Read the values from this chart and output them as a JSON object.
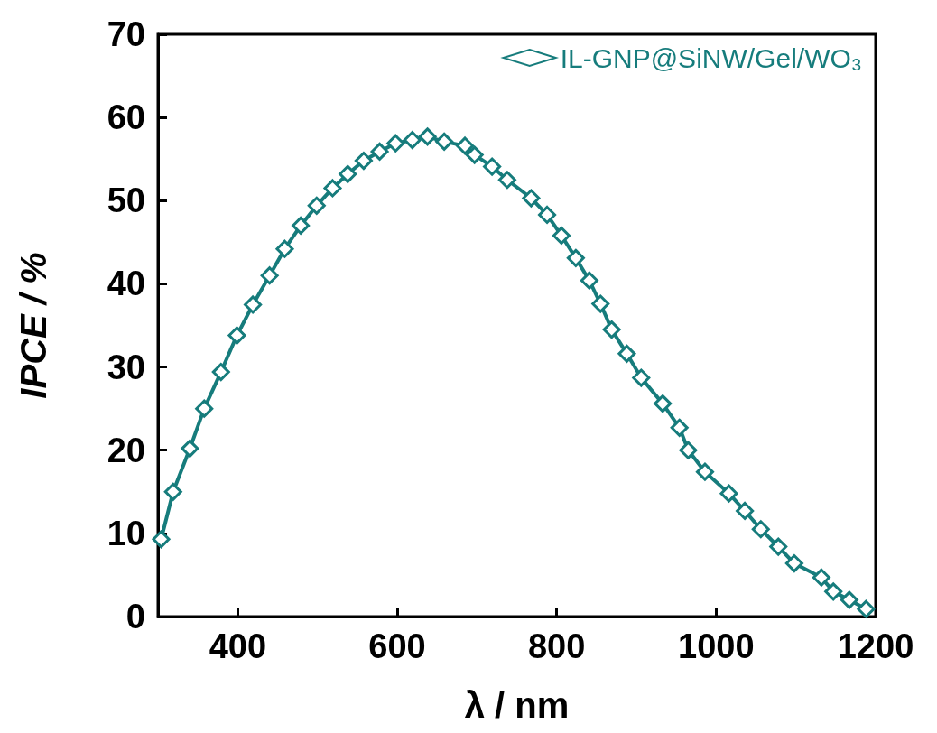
{
  "chart_data": {
    "type": "line",
    "xlabel": "λ / nm",
    "ylabel": "IPCE / %",
    "series": [
      {
        "name": "IL-GNP@SiNW/Gel/WO₃",
        "color": "#167c7c",
        "x": [
          304,
          319,
          340,
          358,
          379,
          399,
          419,
          440,
          459,
          479,
          499,
          519,
          538,
          558,
          578,
          598,
          619,
          638,
          659,
          685,
          697,
          719,
          738,
          768,
          788,
          806,
          824,
          841,
          855,
          869,
          888,
          906,
          933,
          954,
          965,
          986,
          1016,
          1036,
          1056,
          1078,
          1098,
          1132,
          1147,
          1167,
          1188
        ],
        "values": [
          9.3,
          15.0,
          20.2,
          25.0,
          29.4,
          33.8,
          37.5,
          41.0,
          44.2,
          47.0,
          49.4,
          51.5,
          53.2,
          54.8,
          55.9,
          56.9,
          57.3,
          57.7,
          57.1,
          56.6,
          55.5,
          54.1,
          52.5,
          50.3,
          48.3,
          45.8,
          43.1,
          40.4,
          37.6,
          34.5,
          31.6,
          28.7,
          25.6,
          22.7,
          20.0,
          17.4,
          14.8,
          12.7,
          10.5,
          8.4,
          6.4,
          4.7,
          3.0,
          2.0,
          0.9
        ]
      }
    ],
    "xlim": [
      300,
      1200
    ],
    "xticks": [
      400,
      600,
      800,
      1000,
      1200
    ],
    "ylim": [
      0,
      70
    ],
    "yticks": [
      0,
      10,
      20,
      30,
      40,
      50,
      60,
      70
    ],
    "grid": false,
    "legend": "top right",
    "marker": "diamond",
    "line_style": "solid"
  }
}
